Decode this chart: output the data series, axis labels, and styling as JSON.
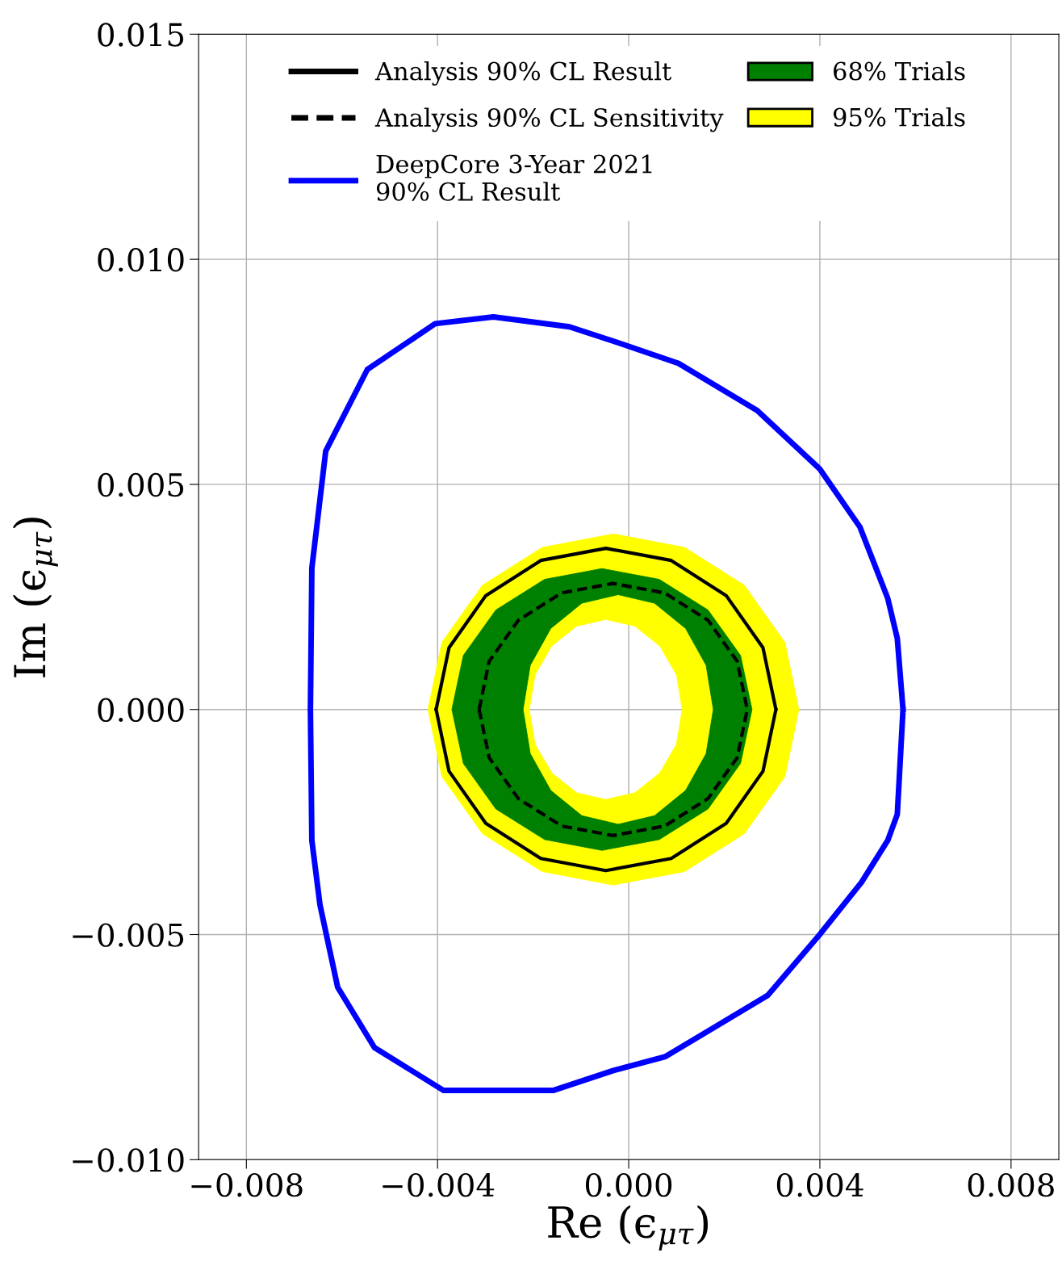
{
  "chart_data": {
    "type": "line",
    "xlabel": "Re (ϵ$_{μτ}$)",
    "ylabel": "Im (ϵ$_{μτ}$)",
    "xlim": [
      -0.009,
      0.009
    ],
    "ylim": [
      -0.01,
      0.015
    ],
    "xticks": [
      {
        "value": -0.008,
        "label": "−0.008"
      },
      {
        "value": -0.004,
        "label": "−0.004"
      },
      {
        "value": 0,
        "label": "0.000"
      },
      {
        "value": 0.004,
        "label": "0.004"
      },
      {
        "value": 0.008,
        "label": "0.008"
      }
    ],
    "yticks": [
      {
        "value": -0.01,
        "label": "−0.010"
      },
      {
        "value": -0.005,
        "label": "−0.005"
      },
      {
        "value": 0,
        "label": "0.000"
      },
      {
        "value": 0.005,
        "label": "0.005"
      },
      {
        "value": 0.01,
        "label": "0.010"
      },
      {
        "value": 0.015,
        "label": "0.015"
      }
    ],
    "grid": true,
    "legend": "top",
    "series": [
      {
        "name": "Analysis 90% CL Result",
        "color": "#000000",
        "line_style": "solid",
        "x": [
          -0.00403,
          -0.00376,
          -0.00299,
          -0.00184,
          -0.00048,
          0.00089,
          0.00204,
          0.00281,
          0.00308,
          null,
          -0.00403,
          -0.00376,
          -0.00299,
          -0.00184,
          -0.00048,
          0.00089,
          0.00204,
          0.00281,
          0.00308
        ],
        "values": [
          0,
          0.00137,
          0.00253,
          0.00331,
          0.00358,
          0.00331,
          0.00253,
          0.00137,
          0,
          null,
          0,
          -0.00137,
          -0.00253,
          -0.00331,
          -0.00358,
          -0.00331,
          -0.00253,
          -0.00137,
          0
        ]
      },
      {
        "name": "Analysis 90% CL Sensitivity",
        "color": "#000000",
        "line_style": "dashed",
        "x": [
          -0.00313,
          -0.00292,
          -0.00231,
          -0.0014,
          -0.00033,
          0.00075,
          0.00166,
          0.00227,
          0.00248,
          null,
          -0.00313,
          -0.00292,
          -0.00231,
          -0.0014,
          -0.00033,
          0.00075,
          0.00166,
          0.00227,
          0.00248
        ],
        "values": [
          0,
          0.00107,
          0.00198,
          0.00259,
          0.0028,
          0.00259,
          0.00198,
          0.00107,
          0,
          null,
          0,
          -0.00107,
          -0.00198,
          -0.00259,
          -0.0028,
          -0.00259,
          -0.00198,
          -0.00107,
          0
        ]
      },
      {
        "name": "DeepCore 3-Year 2021\n90% CL Result",
        "color": "#0000ff",
        "line_style": "solid",
        "x": [
          -0.00666,
          -0.00663,
          -0.00634,
          -0.00547,
          -0.00405,
          -0.00283,
          -0.00124,
          -0.0004,
          0.00104,
          0.00269,
          0.004,
          0.00484,
          0.00542,
          0.00562,
          0.00574,
          null,
          -0.00666,
          -0.00663,
          -0.00646,
          -0.00609,
          -0.00532,
          -0.00388,
          -0.00157,
          -0.00032,
          0.00077,
          0.00291,
          0.00395,
          0.00487,
          0.00542,
          0.00562,
          0.00574
        ],
        "values": [
          0,
          0.00314,
          0.00574,
          0.00755,
          0.00857,
          0.00872,
          0.0085,
          0.00821,
          0.00769,
          0.00664,
          0.00534,
          0.00405,
          0.00247,
          0.00158,
          0,
          null,
          0,
          -0.00291,
          -0.00434,
          -0.00617,
          -0.00751,
          -0.00846,
          -0.00846,
          -0.00802,
          -0.00771,
          -0.00635,
          -0.00506,
          -0.00384,
          -0.00291,
          -0.00233,
          0
        ]
      },
      {
        "name": "68% Trials",
        "type": "area",
        "color": "#008000",
        "x": [
          0.00258,
          0.00234,
          0.00166,
          0.00064,
          -0.00056,
          -0.00176,
          -0.00278,
          -0.00346,
          -0.0037,
          -0.00221,
          -0.00206,
          -0.00163,
          -0.00098,
          -0.00022,
          0.00054,
          0.00119,
          0.00162,
          0.00177,
          null,
          -0.0037,
          -0.00346,
          -0.00278,
          -0.00176,
          -0.00056,
          0.00064,
          0.00166,
          0.00234,
          0.00258,
          0.00177,
          0.00162,
          0.00119,
          0.00054,
          -0.00022,
          -0.00098,
          -0.00163,
          -0.00206,
          -0.00221
        ],
        "values": [
          0,
          0.0012,
          0.00221,
          0.00289,
          0.00313,
          0.00289,
          0.00221,
          0.0012,
          0,
          0,
          0.00098,
          0.0018,
          0.00236,
          0.00255,
          0.00236,
          0.0018,
          0.00098,
          0,
          null,
          0,
          -0.0012,
          -0.00221,
          -0.00289,
          -0.00313,
          -0.00289,
          -0.00221,
          -0.0012,
          0,
          0,
          -0.00098,
          -0.0018,
          -0.00236,
          -0.00255,
          -0.00236,
          -0.0018,
          -0.00098,
          0
        ]
      },
      {
        "name": "95% Trials",
        "type": "area",
        "color": "#ffff00",
        "x": [
          0.00356,
          0.00327,
          0.00242,
          0.00117,
          -0.00032,
          -0.00181,
          -0.00306,
          -0.00391,
          -0.0042,
          -0.00391,
          -0.00306,
          -0.00181,
          -0.00032,
          0.00117,
          0.00242,
          0.00327,
          0.00356,
          null,
          0.00112,
          0.001,
          0.00065,
          0.00013,
          -0.00048,
          -0.00109,
          -0.00161,
          -0.00196,
          -0.00208,
          -0.00196,
          -0.00161,
          -0.00109,
          -0.00048,
          0.00013,
          0.00065,
          0.001,
          0.00112
        ],
        "values": [
          0,
          0.00149,
          0.00276,
          0.0036,
          0.0039,
          0.0036,
          0.00276,
          0.00149,
          0,
          -0.00149,
          -0.00276,
          -0.0036,
          -0.0039,
          -0.0036,
          -0.00276,
          -0.00149,
          0,
          null,
          0,
          -0.00077,
          -0.00141,
          -0.00185,
          -0.002,
          -0.00185,
          -0.00141,
          -0.00077,
          0,
          0.00077,
          0.00141,
          0.00185,
          0.002,
          0.00185,
          0.00141,
          0.00077,
          0
        ]
      }
    ]
  }
}
